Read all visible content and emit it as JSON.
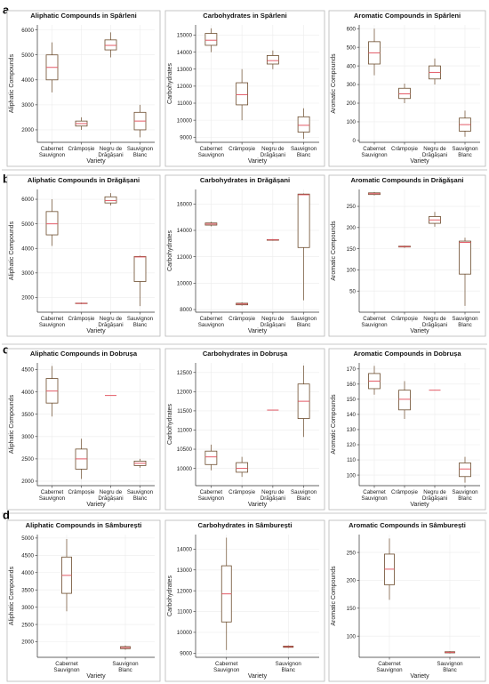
{
  "panels": [
    {
      "letter": "a",
      "charts": [
        {
          "type": "box",
          "title": "Aliphatic Compounds in Spârleni",
          "xlabel": "Variety",
          "ylabel": "Aliphatic Compounds",
          "categories": [
            "Cabernet Sauvignon",
            "Crâmpoșie",
            "Negru de Drăgășani",
            "Sauvignon Blanc"
          ],
          "ylim": [
            1500,
            6200
          ],
          "yticks": [
            2000,
            3000,
            4000,
            5000,
            6000
          ],
          "boxes": [
            {
              "min": 3500,
              "q1": 4000,
              "median": 4500,
              "q3": 5000,
              "max": 5500
            },
            {
              "min": 2000,
              "q1": 2150,
              "median": 2250,
              "q3": 2350,
              "max": 2500
            },
            {
              "min": 4900,
              "q1": 5200,
              "median": 5380,
              "q3": 5600,
              "max": 5900
            },
            {
              "min": 1700,
              "q1": 2000,
              "median": 2350,
              "q3": 2700,
              "max": 3000
            }
          ]
        },
        {
          "type": "box",
          "title": "Carbohydrates in Spârleni",
          "xlabel": "Variety",
          "ylabel": "Carbohydrates",
          "categories": [
            "Cabernet Sauvignon",
            "Crâmpoșie",
            "Negru de Drăgășani",
            "Sauvignon Blanc"
          ],
          "ylim": [
            8700,
            15600
          ],
          "yticks": [
            9000,
            10000,
            11000,
            12000,
            13000,
            14000,
            15000
          ],
          "boxes": [
            {
              "min": 14000,
              "q1": 14400,
              "median": 14700,
              "q3": 15100,
              "max": 15400
            },
            {
              "min": 10000,
              "q1": 10900,
              "median": 11500,
              "q3": 12200,
              "max": 13000
            },
            {
              "min": 13000,
              "q1": 13300,
              "median": 13500,
              "q3": 13800,
              "max": 14100
            },
            {
              "min": 8900,
              "q1": 9300,
              "median": 9700,
              "q3": 10200,
              "max": 10700
            }
          ]
        },
        {
          "type": "box",
          "title": "Aromatic Compounds in Spârleni",
          "xlabel": "Variety",
          "ylabel": "Aromatic Compounds",
          "categories": [
            "Cabernet Sauvignon",
            "Crâmpoșie",
            "Negru de Drăgășani",
            "Sauvignon Blanc"
          ],
          "ylim": [
            -10,
            620
          ],
          "yticks": [
            0,
            100,
            200,
            300,
            400,
            500,
            600
          ],
          "boxes": [
            {
              "min": 350,
              "q1": 410,
              "median": 470,
              "q3": 530,
              "max": 600
            },
            {
              "min": 200,
              "q1": 225,
              "median": 250,
              "q3": 280,
              "max": 305
            },
            {
              "min": 300,
              "q1": 330,
              "median": 365,
              "q3": 400,
              "max": 440
            },
            {
              "min": 20,
              "q1": 50,
              "median": 85,
              "q3": 120,
              "max": 160
            }
          ]
        }
      ]
    },
    {
      "letter": "b",
      "charts": [
        {
          "type": "box",
          "title": "Aliphatic Compounds in Drăgășani",
          "xlabel": "Variety",
          "ylabel": "Aliphatic Compounds",
          "categories": [
            "Cabernet Sauvignon",
            "Crâmpoșie",
            "Negru de Drăgășani",
            "Sauvignon Blanc"
          ],
          "ylim": [
            1400,
            6400
          ],
          "yticks": [
            2000,
            3000,
            4000,
            5000,
            6000
          ],
          "boxes": [
            {
              "min": 4100,
              "q1": 4550,
              "median": 5000,
              "q3": 5500,
              "max": 6000
            },
            {
              "min": 1730,
              "q1": 1750,
              "median": 1760,
              "q3": 1770,
              "max": 1790
            },
            {
              "min": 5750,
              "q1": 5850,
              "median": 5950,
              "q3": 6100,
              "max": 6250
            },
            {
              "min": 1650,
              "q1": 2650,
              "median": 3650,
              "q3": 3670,
              "max": 3700
            }
          ]
        },
        {
          "type": "box",
          "title": "Carbohydrates in Drăgășani",
          "xlabel": "Variety",
          "ylabel": "Carbohydrates",
          "categories": [
            "Cabernet Sauvignon",
            "Crâmpoșie",
            "Negru de Drăgășani",
            "Sauvignon Blanc"
          ],
          "ylim": [
            7800,
            17100
          ],
          "yticks": [
            8000,
            10000,
            12000,
            14000,
            16000
          ],
          "boxes": [
            {
              "min": 14300,
              "q1": 14400,
              "median": 14480,
              "q3": 14560,
              "max": 14650
            },
            {
              "min": 8300,
              "q1": 8360,
              "median": 8420,
              "q3": 8480,
              "max": 8550
            },
            {
              "min": 13220,
              "q1": 13250,
              "median": 13280,
              "q3": 13300,
              "max": 13340
            },
            {
              "min": 8700,
              "q1": 12700,
              "median": 16700,
              "q3": 16750,
              "max": 16800
            }
          ]
        },
        {
          "type": "box",
          "title": "Aromatic Compounds in Drăgășani",
          "xlabel": "Variety",
          "ylabel": "Aromatic Compounds",
          "categories": [
            "Cabernet Sauvignon",
            "Crâmpoșie",
            "Negru de Drăgășani",
            "Sauvignon Blanc"
          ],
          "ylim": [
            0,
            290
          ],
          "yticks": [
            50,
            100,
            150,
            200,
            250
          ],
          "boxes": [
            {
              "min": 276,
              "q1": 278,
              "median": 280,
              "q3": 282,
              "max": 284
            },
            {
              "min": 152,
              "q1": 154,
              "median": 155,
              "q3": 156,
              "max": 157
            },
            {
              "min": 202,
              "q1": 210,
              "median": 218,
              "q3": 226,
              "max": 237
            },
            {
              "min": 15,
              "q1": 90,
              "median": 165,
              "q3": 168,
              "max": 176
            }
          ]
        }
      ]
    },
    {
      "letter": "c",
      "charts": [
        {
          "type": "box",
          "title": "Aliphatic Compounds in Dobrușa",
          "xlabel": "Variety",
          "ylabel": "Aliphatic Compounds",
          "categories": [
            "Cabernet Sauvignon",
            "Crâmpoșie",
            "Negru de Drăgășani",
            "Sauvignon Blanc"
          ],
          "ylim": [
            1900,
            4650
          ],
          "yticks": [
            2000,
            2500,
            3000,
            3500,
            4000,
            4500
          ],
          "boxes": [
            {
              "min": 3450,
              "q1": 3750,
              "median": 4020,
              "q3": 4300,
              "max": 4580
            },
            {
              "min": 2050,
              "q1": 2270,
              "median": 2500,
              "q3": 2720,
              "max": 2950
            },
            {
              "min": 3920,
              "q1": 3920,
              "median": 3920,
              "q3": 3920,
              "max": 3920
            },
            {
              "min": 2300,
              "q1": 2350,
              "median": 2400,
              "q3": 2450,
              "max": 2500
            }
          ]
        },
        {
          "type": "box",
          "title": "Carbohydrates in Dobrușa",
          "xlabel": "Variety",
          "ylabel": "Carbohydrates",
          "categories": [
            "Cabernet Sauvignon",
            "Crâmpoșie",
            "Negru de Drăgășani",
            "Sauvignon Blanc"
          ],
          "ylim": [
            9550,
            12750
          ],
          "yticks": [
            10000,
            10500,
            11000,
            11500,
            12000,
            12500
          ],
          "boxes": [
            {
              "min": 9950,
              "q1": 10100,
              "median": 10300,
              "q3": 10450,
              "max": 10620
            },
            {
              "min": 9780,
              "q1": 9900,
              "median": 10000,
              "q3": 10150,
              "max": 10300
            },
            {
              "min": 11520,
              "q1": 11520,
              "median": 11520,
              "q3": 11520,
              "max": 11520
            },
            {
              "min": 10820,
              "q1": 11300,
              "median": 11750,
              "q3": 12200,
              "max": 12680
            }
          ]
        },
        {
          "type": "box",
          "title": "Aromatic Compounds in Dobrușa",
          "xlabel": "Variety",
          "ylabel": "Aromatic Compounds",
          "categories": [
            "Cabernet Sauvignon",
            "Crâmpoșie",
            "Negru de Drăgășani",
            "Sauvignon Blanc"
          ],
          "ylim": [
            93,
            174
          ],
          "yticks": [
            100,
            110,
            120,
            130,
            140,
            150,
            160,
            170
          ],
          "boxes": [
            {
              "min": 153,
              "q1": 157,
              "median": 162,
              "q3": 167,
              "max": 172
            },
            {
              "min": 137,
              "q1": 143,
              "median": 150,
              "q3": 156,
              "max": 162
            },
            {
              "min": 156,
              "q1": 156,
              "median": 156,
              "q3": 156,
              "max": 156
            },
            {
              "min": 95,
              "q1": 99,
              "median": 104,
              "q3": 108,
              "max": 112
            }
          ]
        }
      ]
    },
    {
      "letter": "d",
      "charts": [
        {
          "type": "box",
          "title": "Aliphatic Compounds in Sâmburești",
          "xlabel": "Variety",
          "ylabel": "Aliphatic Compounds",
          "categories": [
            "Cabernet Sauvignon",
            "Sauvignon Blanc"
          ],
          "ylim": [
            1550,
            5100
          ],
          "yticks": [
            2000,
            2500,
            3000,
            3500,
            4000,
            4500,
            5000
          ],
          "boxes": [
            {
              "min": 2880,
              "q1": 3400,
              "median": 3920,
              "q3": 4450,
              "max": 4970
            },
            {
              "min": 1770,
              "q1": 1800,
              "median": 1830,
              "q3": 1860,
              "max": 1890
            }
          ]
        },
        {
          "type": "box",
          "title": "Carbohydrates in Sâmburești",
          "xlabel": "Variety",
          "ylabel": "Carbohydrates",
          "categories": [
            "Cabernet Sauvignon",
            "Sauvignon Blanc"
          ],
          "ylim": [
            8800,
            14700
          ],
          "yticks": [
            9000,
            10000,
            11000,
            12000,
            13000,
            14000
          ],
          "boxes": [
            {
              "min": 9150,
              "q1": 10500,
              "median": 11850,
              "q3": 13200,
              "max": 14550
            },
            {
              "min": 9250,
              "q1": 9280,
              "median": 9310,
              "q3": 9340,
              "max": 9370
            }
          ]
        },
        {
          "type": "box",
          "title": "Aromatic Compounds in Sâmburești",
          "xlabel": "Variety",
          "ylabel": "Aromatic Compounds",
          "categories": [
            "Cabernet Sauvignon",
            "Sauvignon Blanc"
          ],
          "ylim": [
            62,
            282
          ],
          "yticks": [
            100,
            150,
            200,
            250
          ],
          "boxes": [
            {
              "min": 165,
              "q1": 192,
              "median": 220,
              "q3": 247,
              "max": 275
            },
            {
              "min": 69,
              "q1": 70,
              "median": 71,
              "q3": 72,
              "max": 73
            }
          ]
        }
      ]
    }
  ],
  "colors": {
    "box_edge": "#6b4b2c",
    "median": "#e35a66",
    "grid": "#ececec",
    "frame": "#b8b8b8"
  }
}
